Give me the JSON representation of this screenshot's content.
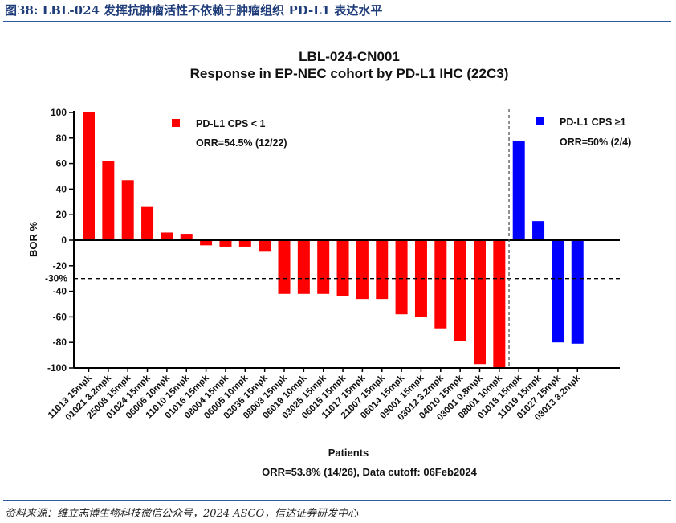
{
  "figure": {
    "title": "图38: LBL-024 发挥抗肿瘤活性不依赖于肿瘤组织 PD-L1 表达水平",
    "source": "资料来源：维立志博生物科技微信公众号，2024 ASCO，信达证券研发中心"
  },
  "colors": {
    "low": "#ff0000",
    "high": "#0000ff",
    "rule": "#2e5a9e"
  },
  "chart_data": {
    "type": "bar",
    "title": "LBL-024-CN001",
    "subtitle": "Response in EP-NEC cohort by PD-L1 IHC (22C3)",
    "xlabel": "Patients",
    "ylabel": "BOR %",
    "ylim": [
      -100,
      100
    ],
    "yticks": [
      100,
      80,
      60,
      40,
      20,
      0,
      -20,
      -40,
      -60,
      -80,
      -100
    ],
    "reference_line": {
      "value": -30,
      "label": "-30%"
    },
    "footnote": "ORR=53.8% (14/26),  Data cutoff: 06Feb2024",
    "categories": [
      "11013 15mpk",
      "01021 3.2mpk",
      "25008 15mpk",
      "01024 15mpk",
      "06006 10mpk",
      "11010 15mpk",
      "01016 15mpk",
      "08004 15mpk",
      "06005 10mpk",
      "03036 15mpk",
      "08003 15mpk",
      "06019 10mpk",
      "03025 15mpk",
      "06015 15mpk",
      "11017 15mpk",
      "21007 15mpk",
      "06014 15mpk",
      "09001 15mpk",
      "03012 3.2mpk",
      "04010 15mpk",
      "03001 0.8mpk",
      "08001 10mpk",
      "01018 15mpk",
      "11019 15mpk",
      "01027 15mpk",
      "03013 3.2mpk"
    ],
    "values": [
      100,
      62,
      47,
      26,
      6,
      5,
      -4,
      -5,
      -5,
      -9,
      -42,
      -42,
      -42,
      -44,
      -46,
      -46,
      -58,
      -60,
      -69,
      -79,
      -97,
      -100,
      78,
      15,
      -80,
      -81
    ],
    "series": [
      {
        "name": "PD-L1 CPS < 1",
        "annotation": "ORR=54.5% (12/22)",
        "start": 0,
        "count": 22
      },
      {
        "name": "PD-L1 CPS ≥1",
        "annotation": "ORR=50% (2/4)",
        "start": 22,
        "count": 4
      }
    ]
  }
}
